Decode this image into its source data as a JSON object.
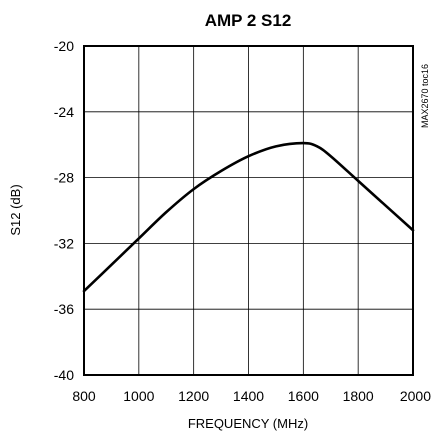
{
  "chart_data": {
    "type": "line",
    "title": "AMP 2 S12",
    "xlabel": "FREQUENCY (MHz)",
    "ylabel": "S12 (dB)",
    "xlim": [
      800,
      2000
    ],
    "ylim": [
      -40,
      -20
    ],
    "xticks": [
      800,
      1000,
      1200,
      1400,
      1600,
      1800,
      2000
    ],
    "yticks": [
      -20,
      -24,
      -28,
      -32,
      -36,
      -40
    ],
    "grid": true,
    "series": [
      {
        "x": [
          800,
          900,
          1000,
          1100,
          1200,
          1300,
          1400,
          1500,
          1600,
          1650,
          1700,
          1800,
          1900,
          2000
        ],
        "y": [
          -34.9,
          -33.3,
          -31.7,
          -30.1,
          -28.7,
          -27.6,
          -26.7,
          -26.1,
          -25.9,
          -26.1,
          -26.7,
          -28.2,
          -29.7,
          -31.2
        ]
      }
    ],
    "annotation": "MAX2670 toc16"
  }
}
